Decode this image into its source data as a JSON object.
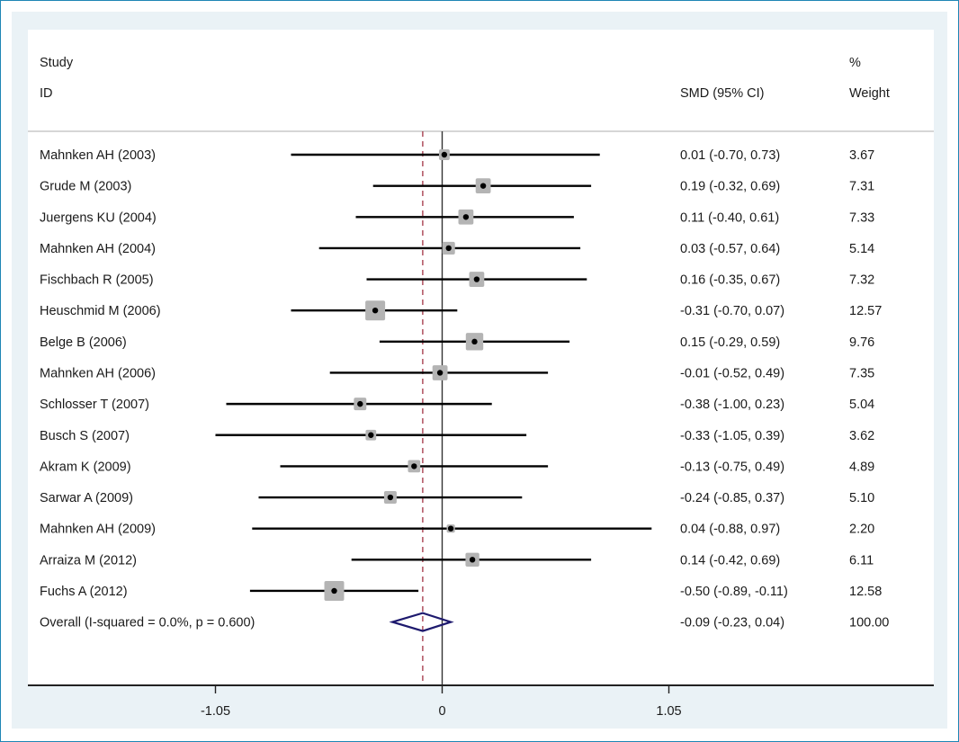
{
  "chart_data": {
    "type": "forest",
    "header": {
      "study_line1": "Study",
      "study_line2": "ID",
      "effect_label": "SMD (95% CI)",
      "weight_line1": "%",
      "weight_line2": "Weight"
    },
    "studies": [
      {
        "label": "Mahnken AH (2003)",
        "smd": 0.01,
        "lo": -0.7,
        "hi": 0.73,
        "ci_text": "0.01 (-0.70, 0.73)",
        "weight": 3.67,
        "weight_text": "3.67"
      },
      {
        "label": "Grude M (2003)",
        "smd": 0.19,
        "lo": -0.32,
        "hi": 0.69,
        "ci_text": "0.19 (-0.32, 0.69)",
        "weight": 7.31,
        "weight_text": "7.31"
      },
      {
        "label": "Juergens KU (2004)",
        "smd": 0.11,
        "lo": -0.4,
        "hi": 0.61,
        "ci_text": "0.11 (-0.40, 0.61)",
        "weight": 7.33,
        "weight_text": "7.33"
      },
      {
        "label": "Mahnken AH (2004)",
        "smd": 0.03,
        "lo": -0.57,
        "hi": 0.64,
        "ci_text": "0.03 (-0.57, 0.64)",
        "weight": 5.14,
        "weight_text": "5.14"
      },
      {
        "label": "Fischbach R (2005)",
        "smd": 0.16,
        "lo": -0.35,
        "hi": 0.67,
        "ci_text": "0.16 (-0.35, 0.67)",
        "weight": 7.32,
        "weight_text": "7.32"
      },
      {
        "label": "Heuschmid M (2006)",
        "smd": -0.31,
        "lo": -0.7,
        "hi": 0.07,
        "ci_text": "-0.31 (-0.70, 0.07)",
        "weight": 12.57,
        "weight_text": "12.57"
      },
      {
        "label": "Belge B (2006)",
        "smd": 0.15,
        "lo": -0.29,
        "hi": 0.59,
        "ci_text": "0.15 (-0.29, 0.59)",
        "weight": 9.76,
        "weight_text": "9.76"
      },
      {
        "label": "Mahnken AH (2006)",
        "smd": -0.01,
        "lo": -0.52,
        "hi": 0.49,
        "ci_text": "-0.01 (-0.52, 0.49)",
        "weight": 7.35,
        "weight_text": "7.35"
      },
      {
        "label": "Schlosser T (2007)",
        "smd": -0.38,
        "lo": -1.0,
        "hi": 0.23,
        "ci_text": "-0.38 (-1.00, 0.23)",
        "weight": 5.04,
        "weight_text": "5.04"
      },
      {
        "label": "Busch S (2007)",
        "smd": -0.33,
        "lo": -1.05,
        "hi": 0.39,
        "ci_text": "-0.33 (-1.05, 0.39)",
        "weight": 3.62,
        "weight_text": "3.62"
      },
      {
        "label": "Akram K (2009)",
        "smd": -0.13,
        "lo": -0.75,
        "hi": 0.49,
        "ci_text": "-0.13 (-0.75, 0.49)",
        "weight": 4.89,
        "weight_text": "4.89"
      },
      {
        "label": "Sarwar A (2009)",
        "smd": -0.24,
        "lo": -0.85,
        "hi": 0.37,
        "ci_text": "-0.24 (-0.85, 0.37)",
        "weight": 5.1,
        "weight_text": "5.10"
      },
      {
        "label": "Mahnken AH (2009)",
        "smd": 0.04,
        "lo": -0.88,
        "hi": 0.97,
        "ci_text": "0.04 (-0.88, 0.97)",
        "weight": 2.2,
        "weight_text": "2.20"
      },
      {
        "label": "Arraiza M (2012)",
        "smd": 0.14,
        "lo": -0.42,
        "hi": 0.69,
        "ci_text": "0.14 (-0.42, 0.69)",
        "weight": 6.11,
        "weight_text": "6.11"
      },
      {
        "label": "Fuchs A (2012)",
        "smd": -0.5,
        "lo": -0.89,
        "hi": -0.11,
        "ci_text": "-0.50 (-0.89, -0.11)",
        "weight": 12.58,
        "weight_text": "12.58"
      }
    ],
    "overall": {
      "label": "Overall  (I-squared = 0.0%, p = 0.600)",
      "smd": -0.09,
      "lo": -0.23,
      "hi": 0.04,
      "ci_text": "-0.09 (-0.23, 0.04)",
      "weight": 100.0,
      "weight_text": "100.00"
    },
    "x_ticks": [
      {
        "value": -1.05,
        "label": "-1.05"
      },
      {
        "value": 0,
        "label": "0"
      },
      {
        "value": 1.05,
        "label": "1.05"
      }
    ],
    "null_line": 0,
    "pooled_line": -0.09,
    "xlabel": "",
    "ylabel": "",
    "grid": false,
    "colors": {
      "frame_border": "#1f86b5",
      "outer_background": "#eaf2f6",
      "panel_background": "#ffffff",
      "ci_line": "#000000",
      "weight_box": "#b4b4b4",
      "point": "#000000",
      "null_line": "#333333",
      "pooled_line": "#9b2335",
      "diamond": "#1e1a6e",
      "separator": "#bdbdbd"
    }
  }
}
